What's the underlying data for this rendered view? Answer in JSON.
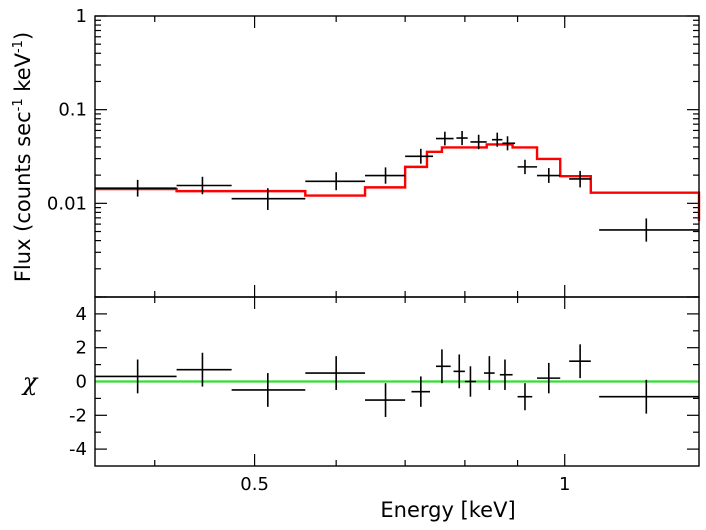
{
  "chart_data": [
    {
      "panel": "spectrum",
      "type": "line",
      "xscale": "log",
      "yscale": "log",
      "xlim": [
        0.35,
        1.35
      ],
      "ylim": [
        0.001,
        1
      ],
      "ylabel": "Flux (counts sec",
      "ylabel_sup": "-1",
      "ylabel_tail": " keV",
      "ylabel_sup2": "-1",
      "ylabel_end": ")",
      "yticks": [
        {
          "value": 0.01,
          "label": "0.01"
        },
        {
          "value": 0.1,
          "label": "0.1"
        },
        {
          "value": 1,
          "label": "1"
        }
      ],
      "data": [
        {
          "x": 0.385,
          "xlo": 0.35,
          "xhi": 0.42,
          "y": 0.0145,
          "ylo": 0.0118,
          "yhi": 0.0178
        },
        {
          "x": 0.445,
          "xlo": 0.42,
          "xhi": 0.475,
          "y": 0.0155,
          "ylo": 0.0125,
          "yhi": 0.0192
        },
        {
          "x": 0.515,
          "xlo": 0.475,
          "xhi": 0.56,
          "y": 0.0112,
          "ylo": 0.0085,
          "yhi": 0.0145
        },
        {
          "x": 0.6,
          "xlo": 0.56,
          "xhi": 0.64,
          "y": 0.0172,
          "ylo": 0.0138,
          "yhi": 0.0215
        },
        {
          "x": 0.67,
          "xlo": 0.64,
          "xhi": 0.7,
          "y": 0.0198,
          "ylo": 0.0162,
          "yhi": 0.0242
        },
        {
          "x": 0.725,
          "xlo": 0.7,
          "xhi": 0.745,
          "y": 0.0318,
          "ylo": 0.0265,
          "yhi": 0.0382
        },
        {
          "x": 0.765,
          "xlo": 0.75,
          "xhi": 0.78,
          "y": 0.0492,
          "ylo": 0.0415,
          "yhi": 0.0582
        },
        {
          "x": 0.795,
          "xlo": 0.785,
          "xhi": 0.805,
          "y": 0.0498,
          "ylo": 0.0418,
          "yhi": 0.0592
        },
        {
          "x": 0.825,
          "xlo": 0.81,
          "xhi": 0.84,
          "y": 0.0452,
          "ylo": 0.0378,
          "yhi": 0.054
        },
        {
          "x": 0.86,
          "xlo": 0.85,
          "xhi": 0.87,
          "y": 0.0478,
          "ylo": 0.0402,
          "yhi": 0.0568
        },
        {
          "x": 0.88,
          "xlo": 0.87,
          "xhi": 0.895,
          "y": 0.0438,
          "ylo": 0.0368,
          "yhi": 0.052
        },
        {
          "x": 0.915,
          "xlo": 0.9,
          "xhi": 0.94,
          "y": 0.0245,
          "ylo": 0.0205,
          "yhi": 0.0292
        },
        {
          "x": 0.965,
          "xlo": 0.94,
          "xhi": 0.99,
          "y": 0.0198,
          "ylo": 0.0165,
          "yhi": 0.0238
        },
        {
          "x": 1.035,
          "xlo": 1.01,
          "xhi": 1.06,
          "y": 0.0182,
          "ylo": 0.0148,
          "yhi": 0.0222
        },
        {
          "x": 1.2,
          "xlo": 1.08,
          "xhi": 1.35,
          "y": 0.0052,
          "ylo": 0.0039,
          "yhi": 0.0069
        }
      ],
      "model": {
        "name": "model",
        "color": "#ff0000",
        "edges": [
          0.35,
          0.42,
          0.56,
          0.64,
          0.7,
          0.735,
          0.76,
          0.84,
          0.89,
          0.94,
          0.99,
          1.06,
          1.35
        ],
        "values": [
          0.0142,
          0.0135,
          0.0121,
          0.0148,
          0.0245,
          0.0355,
          0.0395,
          0.0425,
          0.0395,
          0.0298,
          0.0195,
          0.013,
          0.0065
        ]
      }
    },
    {
      "panel": "residuals",
      "type": "scatter",
      "xscale": "log",
      "xlim": [
        0.35,
        1.35
      ],
      "ylim": [
        -5,
        5
      ],
      "ylabel": "χ",
      "xlabel": "Energy [keV]",
      "yticks": [
        -4,
        -2,
        0,
        2,
        4
      ],
      "xticks": [
        {
          "value": 0.5,
          "label": "0.5"
        },
        {
          "value": 1,
          "label": "1"
        }
      ],
      "zero_line": {
        "value": 0,
        "color": "#33dd33"
      },
      "data": [
        {
          "x": 0.385,
          "xlo": 0.35,
          "xhi": 0.42,
          "y": 0.3,
          "err": 1
        },
        {
          "x": 0.445,
          "xlo": 0.42,
          "xhi": 0.475,
          "y": 0.7,
          "err": 1
        },
        {
          "x": 0.515,
          "xlo": 0.475,
          "xhi": 0.56,
          "y": -0.5,
          "err": 1
        },
        {
          "x": 0.6,
          "xlo": 0.56,
          "xhi": 0.64,
          "y": 0.5,
          "err": 1
        },
        {
          "x": 0.67,
          "xlo": 0.64,
          "xhi": 0.7,
          "y": -1.1,
          "err": 1
        },
        {
          "x": 0.725,
          "xlo": 0.71,
          "xhi": 0.74,
          "y": -0.6,
          "err": 0.9
        },
        {
          "x": 0.76,
          "xlo": 0.75,
          "xhi": 0.775,
          "y": 0.9,
          "err": 1
        },
        {
          "x": 0.79,
          "xlo": 0.78,
          "xhi": 0.8,
          "y": 0.6,
          "err": 1
        },
        {
          "x": 0.81,
          "xlo": 0.8,
          "xhi": 0.82,
          "y": 0.0,
          "err": 0.9
        },
        {
          "x": 0.845,
          "xlo": 0.835,
          "xhi": 0.855,
          "y": 0.5,
          "err": 1
        },
        {
          "x": 0.875,
          "xlo": 0.865,
          "xhi": 0.89,
          "y": 0.4,
          "err": 0.9
        },
        {
          "x": 0.915,
          "xlo": 0.9,
          "xhi": 0.93,
          "y": -0.9,
          "err": 0.8
        },
        {
          "x": 0.965,
          "xlo": 0.94,
          "xhi": 0.99,
          "y": 0.2,
          "err": 0.9
        },
        {
          "x": 1.035,
          "xlo": 1.01,
          "xhi": 1.06,
          "y": 1.2,
          "err": 1
        },
        {
          "x": 1.2,
          "xlo": 1.08,
          "xhi": 1.35,
          "y": -0.9,
          "err": 1
        }
      ]
    }
  ]
}
